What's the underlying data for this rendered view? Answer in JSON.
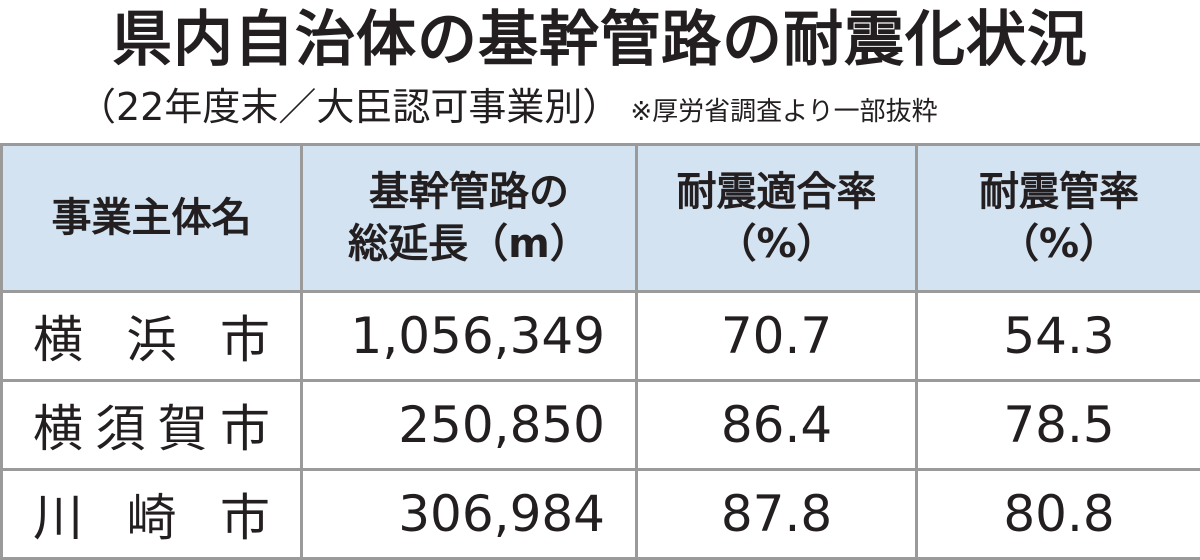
{
  "header": {
    "title": "県内自治体の基幹管路の耐震化状況",
    "subtitle": "（22年度末／大臣認可事業別）",
    "note": "※厚労省調査より一部抜粋"
  },
  "table": {
    "columns": [
      [
        "事業主体名"
      ],
      [
        "基幹管路の",
        "総延長（m）"
      ],
      [
        "耐震適合率",
        "（%）"
      ],
      [
        "耐震管率",
        "（%）"
      ]
    ],
    "rows": [
      [
        "横浜市",
        "1,056,349",
        "70.7",
        "54.3"
      ],
      [
        "横須賀市",
        "250,850",
        "86.4",
        "78.5"
      ],
      [
        "川崎市",
        "306,984",
        "87.8",
        "80.8"
      ]
    ]
  }
}
